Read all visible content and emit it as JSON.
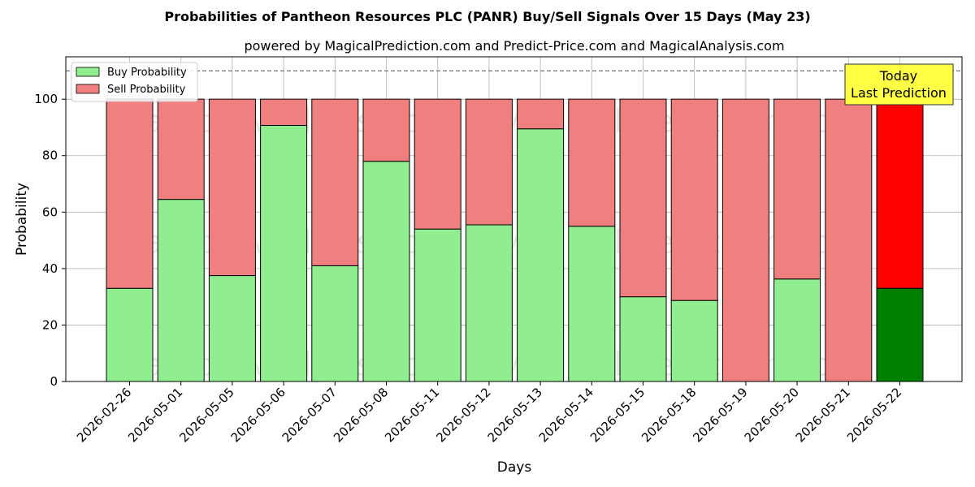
{
  "chart_data": {
    "type": "bar",
    "title": "Probabilities of Pantheon Resources PLC (PANR) Buy/Sell Signals Over 15 Days (May 23)",
    "subtitle": "powered by MagicalPrediction.com and Predict-Price.com and MagicalAnalysis.com",
    "xlabel": "Days",
    "ylabel": "Probability",
    "ylim": [
      0,
      115
    ],
    "yticks": [
      0,
      20,
      40,
      60,
      80,
      100
    ],
    "grid": true,
    "stacked": true,
    "legend_position": "top-left",
    "threshold_line": 110,
    "categories": [
      "2026-02-26",
      "2026-05-01",
      "2026-05-05",
      "2026-05-06",
      "2026-05-07",
      "2026-05-08",
      "2026-05-11",
      "2026-05-12",
      "2026-05-13",
      "2026-05-14",
      "2026-05-15",
      "2026-05-18",
      "2026-05-19",
      "2026-05-20",
      "2026-05-21",
      "2026-05-22"
    ],
    "series": [
      {
        "name": "Buy Probability",
        "color": "#90ee90",
        "values": [
          33,
          64.5,
          37.5,
          90.7,
          41,
          78,
          54,
          55.5,
          89.5,
          55,
          30,
          28.7,
          0,
          36.3,
          0,
          33
        ]
      },
      {
        "name": "Sell Probability",
        "color": "#f08080",
        "values": [
          67,
          35.5,
          62.5,
          9.3,
          59,
          22,
          46,
          44.5,
          10.5,
          45,
          70,
          71.3,
          100,
          63.7,
          100,
          67
        ]
      }
    ],
    "highlight": {
      "index": 15,
      "buy_color": "#008000",
      "sell_color": "#ff0000"
    },
    "annotation": {
      "line1": "Today",
      "line2": "Last Prediction",
      "color": "#ffff44"
    },
    "watermarks": [
      "MagicalAnalysis.com",
      "MagicalPrediction.com"
    ]
  }
}
